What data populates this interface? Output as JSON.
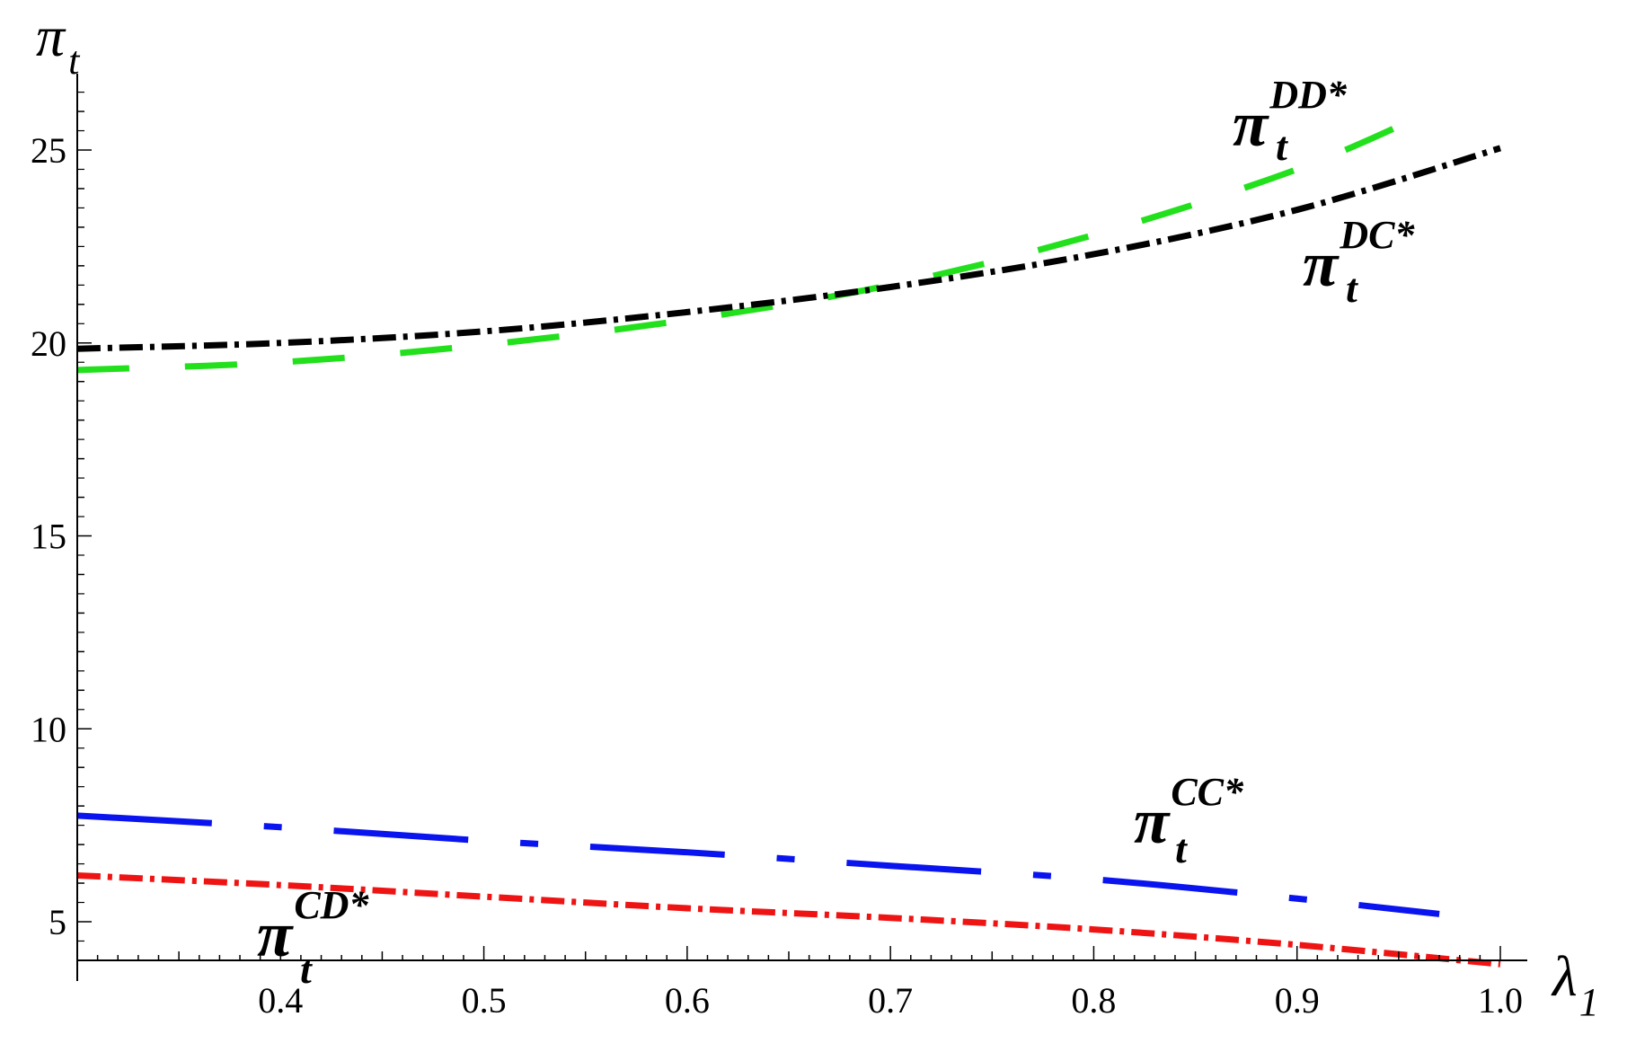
{
  "chart_data": {
    "type": "line",
    "xlabel": "λ",
    "xlabel_sub": "1",
    "ylabel": "π",
    "ylabel_sub": "t",
    "xlim": [
      0.3,
      1.0
    ],
    "ylim": [
      4,
      27
    ],
    "x_ticks": [
      0.4,
      0.5,
      0.6,
      0.7,
      0.8,
      0.9,
      1.0
    ],
    "x_tick_labels": [
      "0.4",
      "0.5",
      "0.6",
      "0.7",
      "0.8",
      "0.9",
      "1.0"
    ],
    "y_ticks": [
      5,
      10,
      15,
      20,
      25
    ],
    "y_tick_labels": [
      "5",
      "10",
      "15",
      "20",
      "25"
    ],
    "grid": false,
    "series": [
      {
        "name": "DD*",
        "color": "#22e01c",
        "dash": "long-dash",
        "x": [
          0.3,
          0.4,
          0.5,
          0.6,
          0.7,
          0.8,
          0.9,
          0.97
        ],
        "values": [
          19.3,
          19.5,
          19.95,
          20.6,
          21.5,
          22.8,
          24.5,
          26.1
        ]
      },
      {
        "name": "DC*",
        "color": "#000000",
        "dash": "dash-dot",
        "x": [
          0.3,
          0.4,
          0.5,
          0.6,
          0.7,
          0.8,
          0.9,
          1.0
        ],
        "values": [
          19.85,
          20.0,
          20.3,
          20.8,
          21.45,
          22.3,
          23.45,
          25.05
        ]
      },
      {
        "name": "CC*",
        "color": "#0a14ee",
        "dash": "long-dash-dot",
        "x": [
          0.3,
          0.4,
          0.5,
          0.6,
          0.7,
          0.8,
          0.9,
          0.97
        ],
        "values": [
          7.75,
          7.45,
          7.1,
          6.8,
          6.45,
          6.1,
          5.6,
          5.2
        ]
      },
      {
        "name": "CD*",
        "color": "#ee1414",
        "dash": "dash-dot",
        "x": [
          0.3,
          0.4,
          0.5,
          0.6,
          0.7,
          0.8,
          0.9,
          1.0
        ],
        "values": [
          6.2,
          5.95,
          5.65,
          5.35,
          5.1,
          4.8,
          4.4,
          3.9
        ]
      }
    ],
    "curve_labels": [
      {
        "series": "DD*",
        "base": "π",
        "sup": "DD*",
        "sub": "t"
      },
      {
        "series": "DC*",
        "base": "π",
        "sup": "DC*",
        "sub": "t"
      },
      {
        "series": "CC*",
        "base": "π",
        "sup": "CC*",
        "sub": "t"
      },
      {
        "series": "CD*",
        "base": "π",
        "sup": "CD*",
        "sub": "t"
      }
    ]
  }
}
